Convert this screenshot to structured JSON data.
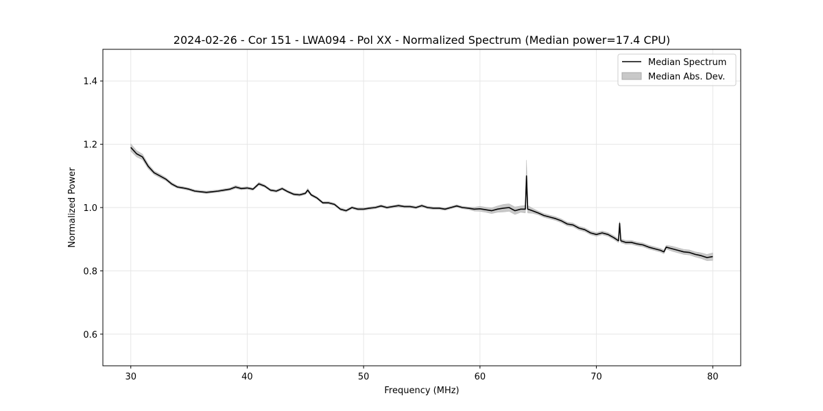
{
  "chart_data": {
    "type": "line",
    "title": "2024-02-26 - Cor 151 - LWA094 - Pol XX - Normalized Spectrum (Median power=17.4 CPU)",
    "xlabel": "Frequency (MHz)",
    "ylabel": "Normalized Power",
    "xlim": [
      27.6,
      82.4
    ],
    "ylim": [
      0.5,
      1.5
    ],
    "xticks": [
      30,
      40,
      50,
      60,
      70,
      80
    ],
    "yticks": [
      0.6,
      0.8,
      1.0,
      1.2,
      1.4
    ],
    "xtick_labels": [
      "30",
      "40",
      "50",
      "60",
      "70",
      "80"
    ],
    "ytick_labels": [
      "0.6",
      "0.8",
      "1.0",
      "1.2",
      "1.4"
    ],
    "grid": true,
    "legend_position": "top-right",
    "series": [
      {
        "name": "Median Spectrum",
        "color": "#000000",
        "x": [
          30,
          30.5,
          31,
          31.5,
          32,
          32.5,
          33,
          33.5,
          34,
          34.5,
          35,
          35.5,
          36,
          36.5,
          37,
          37.5,
          38,
          38.5,
          39,
          39.5,
          40,
          40.5,
          41,
          41.5,
          42,
          42.5,
          43,
          43.5,
          44,
          44.5,
          45,
          45.2,
          45.5,
          46,
          46.5,
          47,
          47.5,
          48,
          48.5,
          49,
          49.5,
          50,
          50.5,
          51,
          51.5,
          52,
          52.5,
          53,
          53.5,
          54,
          54.5,
          55,
          55.5,
          56,
          56.5,
          57,
          57.5,
          58,
          58.5,
          59,
          59.5,
          60,
          60.5,
          61,
          61.5,
          62,
          62.5,
          63,
          63.5,
          63.9,
          64,
          64.1,
          64.5,
          65,
          65.5,
          66,
          66.5,
          67,
          67.5,
          68,
          68.5,
          69,
          69.5,
          70,
          70.5,
          71,
          71.5,
          71.9,
          72,
          72.1,
          72.5,
          73,
          73.5,
          74,
          74.5,
          75,
          75.5,
          75.8,
          76,
          76.5,
          77,
          77.5,
          78,
          78.5,
          79,
          79.5,
          80
        ],
        "values": [
          1.19,
          1.17,
          1.16,
          1.13,
          1.11,
          1.1,
          1.09,
          1.075,
          1.065,
          1.062,
          1.058,
          1.052,
          1.05,
          1.048,
          1.05,
          1.052,
          1.055,
          1.058,
          1.065,
          1.06,
          1.062,
          1.058,
          1.075,
          1.068,
          1.055,
          1.052,
          1.06,
          1.05,
          1.042,
          1.04,
          1.045,
          1.055,
          1.04,
          1.03,
          1.015,
          1.015,
          1.01,
          0.995,
          0.99,
          1.0,
          0.995,
          0.995,
          0.998,
          1.0,
          1.005,
          1.0,
          1.003,
          1.006,
          1.003,
          1.003,
          1.0,
          1.006,
          1.0,
          0.998,
          0.998,
          0.995,
          1.0,
          1.005,
          1.0,
          0.998,
          0.995,
          0.996,
          0.993,
          0.99,
          0.995,
          0.998,
          1.0,
          0.99,
          0.995,
          0.995,
          1.1,
          0.995,
          0.99,
          0.983,
          0.975,
          0.97,
          0.965,
          0.958,
          0.948,
          0.945,
          0.935,
          0.93,
          0.92,
          0.915,
          0.92,
          0.915,
          0.905,
          0.895,
          0.95,
          0.895,
          0.89,
          0.89,
          0.885,
          0.882,
          0.875,
          0.87,
          0.865,
          0.86,
          0.875,
          0.87,
          0.865,
          0.86,
          0.858,
          0.852,
          0.848,
          0.842,
          0.845
        ]
      }
    ],
    "band": {
      "name": "Median Abs. Dev.",
      "color": "#c8c8c8",
      "mad": [
        0.012,
        0.01,
        0.009,
        0.008,
        0.006,
        0.006,
        0.005,
        0.005,
        0.004,
        0.004,
        0.004,
        0.004,
        0.004,
        0.004,
        0.004,
        0.004,
        0.004,
        0.004,
        0.005,
        0.004,
        0.004,
        0.004,
        0.005,
        0.004,
        0.004,
        0.004,
        0.004,
        0.004,
        0.004,
        0.004,
        0.004,
        0.006,
        0.004,
        0.004,
        0.004,
        0.004,
        0.004,
        0.004,
        0.004,
        0.004,
        0.004,
        0.004,
        0.004,
        0.004,
        0.004,
        0.004,
        0.004,
        0.004,
        0.004,
        0.004,
        0.004,
        0.004,
        0.004,
        0.004,
        0.004,
        0.004,
        0.004,
        0.004,
        0.004,
        0.004,
        0.006,
        0.008,
        0.008,
        0.009,
        0.01,
        0.012,
        0.012,
        0.012,
        0.01,
        0.012,
        0.05,
        0.012,
        0.008,
        0.006,
        0.006,
        0.006,
        0.006,
        0.006,
        0.006,
        0.006,
        0.006,
        0.006,
        0.006,
        0.006,
        0.006,
        0.006,
        0.006,
        0.006,
        0.006,
        0.006,
        0.006,
        0.006,
        0.006,
        0.006,
        0.006,
        0.006,
        0.006,
        0.006,
        0.006,
        0.008,
        0.008,
        0.008,
        0.008,
        0.008,
        0.009,
        0.01,
        0.012
      ]
    }
  }
}
